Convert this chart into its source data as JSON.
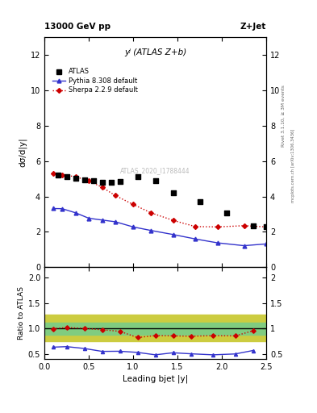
{
  "title_top": "13000 GeV pp",
  "title_right": "Z+Jet",
  "subtitle": "yʲ (ATLAS Z+b)",
  "watermark": "ATLAS_2020_I1788444",
  "right_label": "Rivet 3.1.10, ≥ 3M events",
  "right_label2": "mcplots.cern.ch [arXiv:1306.3436]",
  "ylabel_main": "dσ/d|y|",
  "ylabel_ratio": "Ratio to ATLAS",
  "xlabel": "Leading bjet |y|",
  "atlas_x": [
    0.15,
    0.25,
    0.35,
    0.45,
    0.55,
    0.65,
    0.75,
    0.85,
    1.05,
    1.25,
    1.45,
    1.75,
    2.05,
    2.35,
    2.5
  ],
  "atlas_y": [
    5.22,
    5.12,
    5.05,
    4.95,
    4.88,
    4.8,
    4.78,
    4.85,
    5.1,
    4.87,
    4.22,
    3.72,
    3.05,
    2.32,
    2.28
  ],
  "pythia_x": [
    0.1,
    0.2,
    0.35,
    0.5,
    0.65,
    0.8,
    1.0,
    1.2,
    1.45,
    1.7,
    1.95,
    2.25,
    2.5
  ],
  "pythia_y": [
    3.32,
    3.31,
    3.08,
    2.77,
    2.67,
    2.57,
    2.28,
    2.08,
    1.85,
    1.6,
    1.38,
    1.22,
    1.32
  ],
  "sherpa_x": [
    0.1,
    0.2,
    0.35,
    0.5,
    0.65,
    0.8,
    1.0,
    1.2,
    1.45,
    1.7,
    1.95,
    2.25,
    2.5
  ],
  "sherpa_y": [
    5.28,
    5.22,
    5.12,
    4.88,
    4.52,
    4.05,
    3.55,
    3.08,
    2.65,
    2.3,
    2.28,
    2.35,
    2.28
  ],
  "ratio_pythia_x": [
    0.1,
    0.25,
    0.45,
    0.65,
    0.85,
    1.05,
    1.25,
    1.45,
    1.65,
    1.9,
    2.15,
    2.35
  ],
  "ratio_pythia_y": [
    0.638,
    0.648,
    0.612,
    0.555,
    0.558,
    0.535,
    0.488,
    0.528,
    0.508,
    0.488,
    0.505,
    0.572
  ],
  "ratio_sherpa_x": [
    0.1,
    0.25,
    0.45,
    0.65,
    0.85,
    1.05,
    1.25,
    1.45,
    1.65,
    1.9,
    2.15,
    2.35
  ],
  "ratio_sherpa_y": [
    0.998,
    1.022,
    1.005,
    0.978,
    0.948,
    0.825,
    0.865,
    0.858,
    0.852,
    0.862,
    0.858,
    0.958
  ],
  "band_green_ylow": 0.88,
  "band_green_yhigh": 1.12,
  "band_yellow_ylow": 0.75,
  "band_yellow_yhigh": 1.28,
  "ylim_main": [
    0,
    13
  ],
  "ylim_ratio": [
    0.4,
    2.2
  ],
  "xlim": [
    0.0,
    2.5
  ],
  "yticks_main": [
    0,
    2,
    4,
    6,
    8,
    10,
    12
  ],
  "yticks_ratio": [
    0.5,
    1.0,
    1.5,
    2.0
  ],
  "color_atlas": "#000000",
  "color_pythia": "#3333cc",
  "color_sherpa": "#cc0000",
  "color_green_band": "#80cc80",
  "color_yellow_band": "#cccc40",
  "legend_atlas": "ATLAS",
  "legend_pythia": "Pythia 8.308 default",
  "legend_sherpa": "Sherpa 2.2.9 default"
}
